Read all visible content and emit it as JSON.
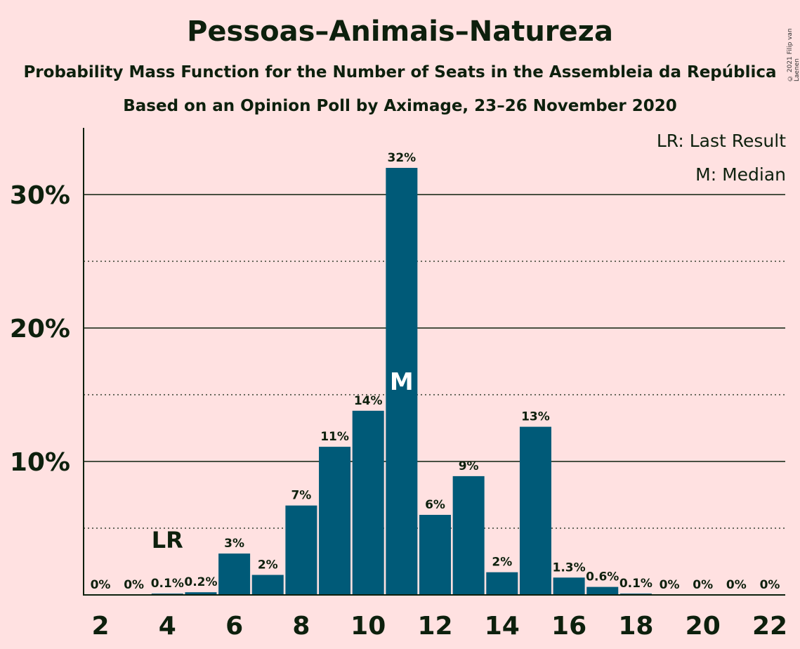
{
  "header": {
    "title": "Pessoas–Animais–Natureza",
    "subtitle": "Probability Mass Function for the Number of Seats in the Assembleia da República",
    "subtitle2": "Based on an Opinion Poll by Aximage, 23–26 November 2020",
    "copyright": "© 2021 Filip van Laenen"
  },
  "legend": {
    "last_result": "LR: Last Result",
    "median": "M: Median"
  },
  "colors": {
    "background": "#ffe1e1",
    "bar": "#005a78",
    "text": "#0d200d"
  },
  "chart_data": {
    "type": "bar",
    "x": [
      2,
      3,
      4,
      5,
      6,
      7,
      8,
      9,
      10,
      11,
      12,
      13,
      14,
      15,
      16,
      17,
      18,
      19,
      20,
      21,
      22
    ],
    "values": [
      0,
      0,
      0.1,
      0.2,
      3.1,
      1.5,
      6.7,
      11.1,
      13.8,
      32.0,
      6.0,
      8.9,
      1.7,
      12.6,
      1.3,
      0.6,
      0.1,
      0,
      0,
      0,
      0
    ],
    "data_labels": [
      "0%",
      "0%",
      "0.1%",
      "0.2%",
      "3%",
      "2%",
      "7%",
      "11%",
      "14%",
      "32%",
      "6%",
      "9%",
      "2%",
      "13%",
      "1.3%",
      "0.6%",
      "0.1%",
      "0%",
      "0%",
      "0%",
      "0%"
    ],
    "x_tick_labels": [
      "2",
      "4",
      "6",
      "8",
      "10",
      "12",
      "14",
      "16",
      "18",
      "20",
      "22"
    ],
    "y_tick_labels": [
      "10%",
      "20%",
      "30%"
    ],
    "ylim": [
      0,
      35
    ],
    "last_result": 4,
    "last_result_label": "LR",
    "median": 11,
    "median_label": "M",
    "grid": true
  }
}
